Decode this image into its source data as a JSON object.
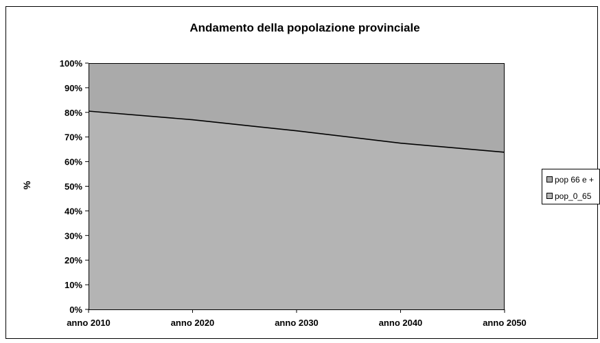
{
  "chart_data": {
    "type": "area",
    "stacked": "percent",
    "title": "Andamento della popolazione provinciale",
    "xlabel": "",
    "ylabel": "%",
    "categories": [
      "anno 2010",
      "anno 2020",
      "anno 2030",
      "anno 2040",
      "anno 2050"
    ],
    "y_ticks": [
      "0%",
      "10%",
      "20%",
      "30%",
      "40%",
      "50%",
      "60%",
      "70%",
      "80%",
      "90%",
      "100%"
    ],
    "ylim": [
      0,
      100
    ],
    "series": [
      {
        "name": "pop_0_65",
        "values": [
          80.5,
          77,
          72.5,
          67.5,
          63.8
        ]
      },
      {
        "name": "pop 66 e +",
        "values": [
          19.5,
          23,
          27.5,
          32.5,
          36.2
        ]
      }
    ],
    "legend_placement": "right",
    "legend_entries": [
      "pop 66 e +",
      "pop_0_65"
    ],
    "grid": false,
    "colors": {
      "pop_0_65": "#b4b4b4",
      "pop 66 e +": "#aaaaaa",
      "plot_background": "#c0c0c0",
      "boundary_line": "#000000"
    }
  }
}
